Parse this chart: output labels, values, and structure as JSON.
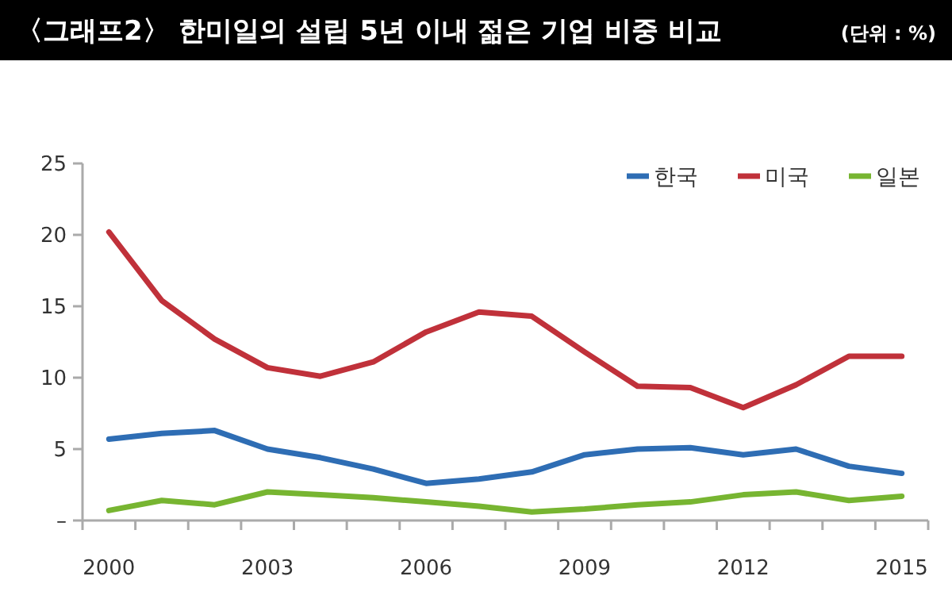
{
  "chart_data": {
    "type": "line",
    "title": "〈그래프2〉 한미일의 설립 5년 이내 젊은 기업 비중 비교",
    "annotations": [
      "(단위 : %)"
    ],
    "categories": [
      "2000",
      null,
      null,
      "2003",
      null,
      null,
      "2006",
      null,
      null,
      "2009",
      null,
      null,
      "2012",
      null,
      null,
      "2015"
    ],
    "series": [
      {
        "name": "한국",
        "color": "#2e6db4",
        "values": [
          5.7,
          6.1,
          6.3,
          5.0,
          4.4,
          3.6,
          2.6,
          2.9,
          3.4,
          4.6,
          5.0,
          5.1,
          4.6,
          5.0,
          3.8,
          3.3
        ]
      },
      {
        "name": "미국",
        "color": "#c0313a",
        "values": [
          20.2,
          15.4,
          12.7,
          10.7,
          10.1,
          11.1,
          13.2,
          14.6,
          14.3,
          11.8,
          9.4,
          9.3,
          7.9,
          9.5,
          11.5,
          11.5
        ]
      },
      {
        "name": "일본",
        "color": "#77b531",
        "values": [
          0.7,
          1.4,
          1.1,
          2.0,
          1.8,
          1.6,
          1.3,
          1.0,
          0.6,
          0.8,
          1.1,
          1.3,
          1.8,
          2.0,
          1.4,
          1.7
        ]
      }
    ],
    "ylim": [
      0,
      25
    ],
    "yticks": [
      {
        "value": 0,
        "label": "–"
      },
      5,
      10,
      15,
      20,
      25
    ],
    "grid": false,
    "legend": "top right",
    "marker": "none",
    "line_style": "solid"
  }
}
